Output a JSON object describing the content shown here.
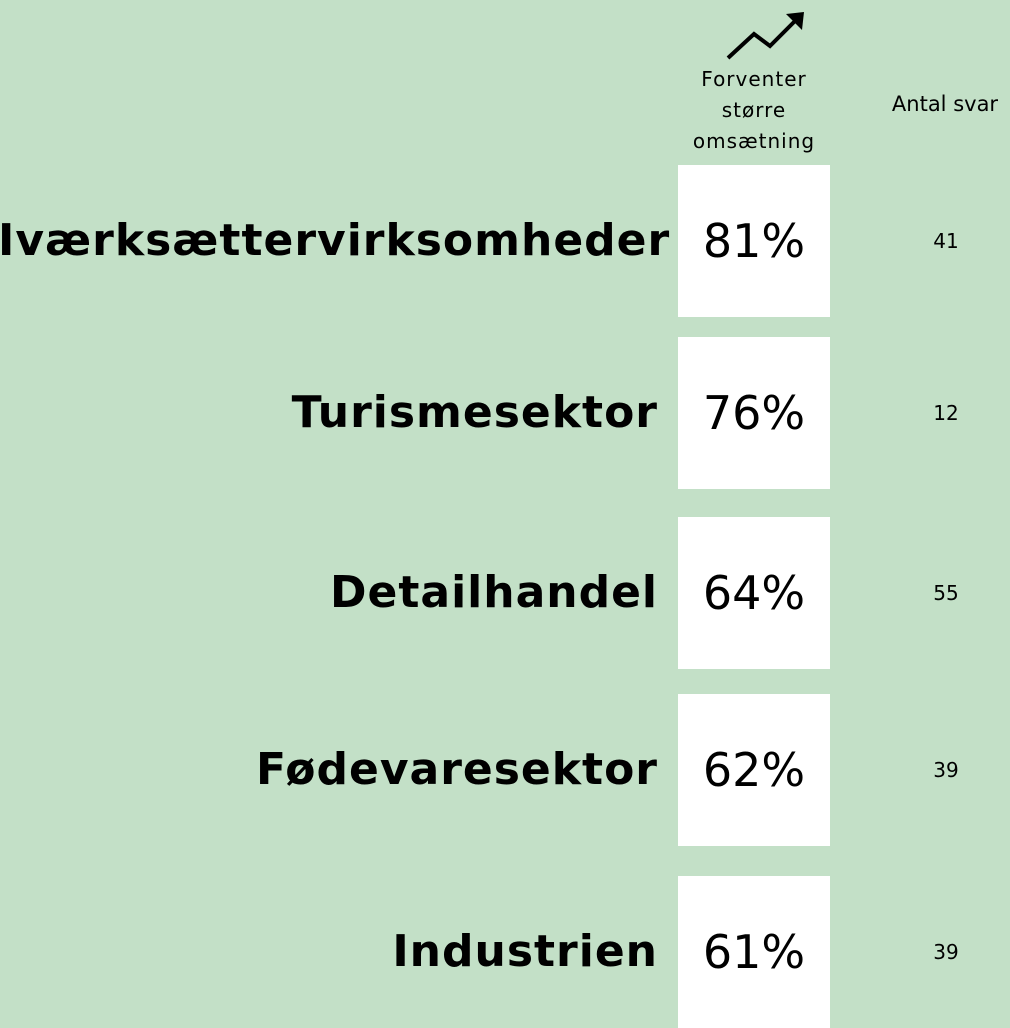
{
  "header": {
    "expect": "Forventer større omsætning",
    "count": "Antal svar"
  },
  "rows": [
    {
      "label": "Iværksættervirksomheder",
      "share": "81%",
      "count": 41
    },
    {
      "label": "Turismesektor",
      "share": "76%",
      "count": 12
    },
    {
      "label": "Detailhandel",
      "share": "64%",
      "count": 55
    },
    {
      "label": "Fødevaresektor",
      "share": "62%",
      "count": 39
    },
    {
      "label": "Industrien",
      "share": "61%",
      "count": 39
    }
  ]
}
